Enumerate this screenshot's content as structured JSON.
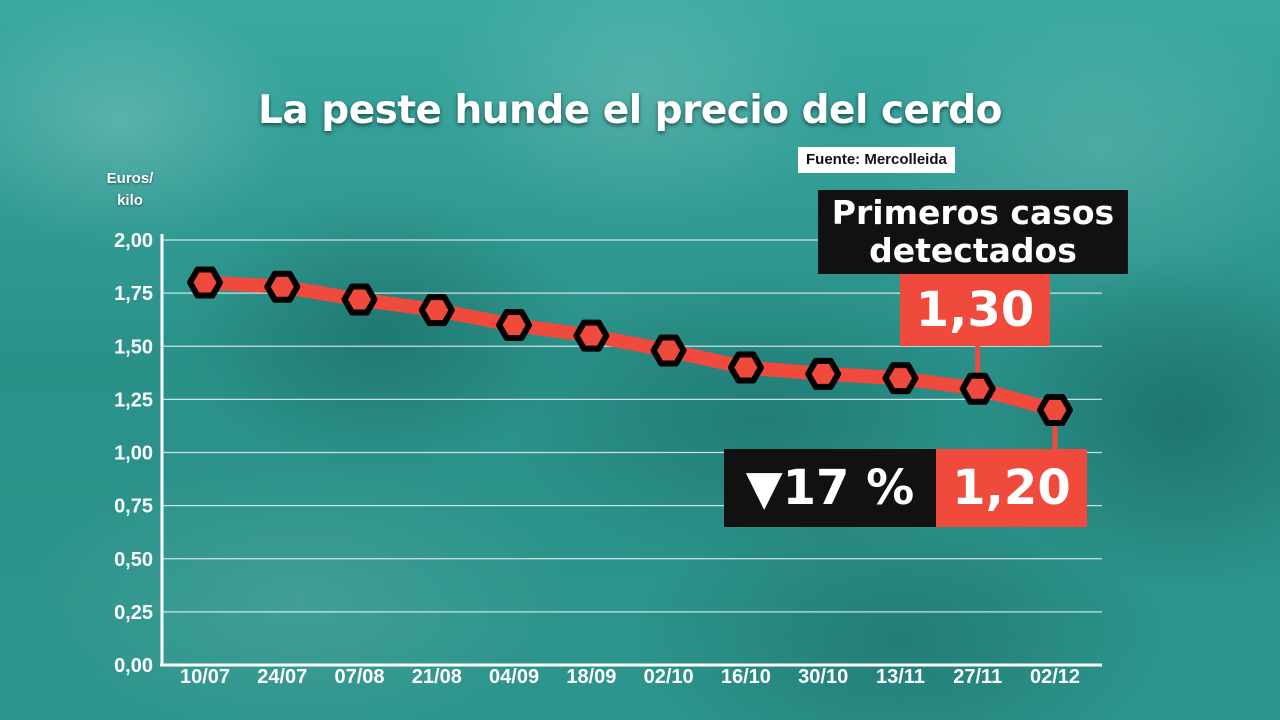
{
  "title": "La peste hunde el precio del cerdo",
  "source": "Fuente: Mercolleida",
  "y_unit_line1": "Euros/",
  "y_unit_line2": "kilo",
  "annotations": {
    "first_cases_line1": "Primeros casos",
    "first_cases_line2": "detectados",
    "first_cases_value": "1,30",
    "change_label": "▼17 %",
    "last_value": "1,20"
  },
  "colors": {
    "background": "#2b9a92",
    "line": "#f04a3c",
    "marker_fill": "#f04a3c",
    "marker_stroke": "#000000",
    "box_dark": "#111111",
    "box_red": "#f04a3c"
  },
  "chart_data": {
    "type": "line",
    "title": "La peste hunde el precio del cerdo",
    "xlabel": "",
    "ylabel": "Euros/kilo",
    "categories": [
      "10/07",
      "24/07",
      "07/08",
      "21/08",
      "04/09",
      "18/09",
      "02/10",
      "16/10",
      "30/10",
      "13/11",
      "27/11",
      "02/12"
    ],
    "values": [
      1.8,
      1.78,
      1.72,
      1.67,
      1.6,
      1.55,
      1.48,
      1.4,
      1.37,
      1.35,
      1.3,
      1.2
    ],
    "ylim": [
      0,
      2
    ],
    "yticks": [
      "0,00",
      "0,25",
      "0,50",
      "0,75",
      "1,00",
      "1,25",
      "1,50",
      "1,75",
      "2,00"
    ],
    "grid": true,
    "legend": "none"
  }
}
